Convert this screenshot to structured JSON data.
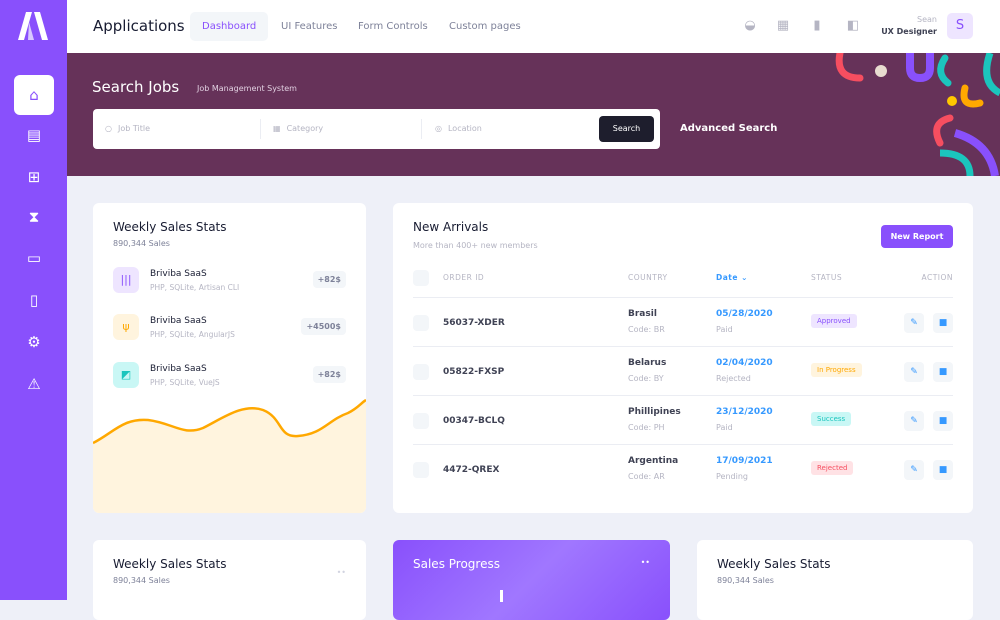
{
  "header": {
    "title": "Applications",
    "nav": [
      "Dashboard",
      "UI Features",
      "Form Controls",
      "Custom pages"
    ],
    "active_nav": "Dashboard",
    "user": {
      "name": "Sean",
      "role": "UX Designer",
      "initial": "S"
    }
  },
  "sidebar": {
    "icons": [
      "home-icon",
      "clipboard-icon",
      "calendar-plus-icon",
      "hourglass-icon",
      "presentation-chart-icon",
      "file-chart-icon",
      "gear-icon",
      "warning-icon"
    ]
  },
  "banner": {
    "title": "Search Jobs",
    "subtitle": "Job Management System",
    "job_placeholder": "Job Title",
    "category_placeholder": "Category",
    "location_placeholder": "Location",
    "search_label": "Search",
    "advanced_label": "Advanced Search"
  },
  "weekly": {
    "title": "Weekly Sales Stats",
    "subtitle": "890,344 Sales",
    "items": [
      {
        "name": "Briviba SaaS",
        "desc": "PHP, SQLite, Artisan CLI",
        "value": "+82$"
      },
      {
        "name": "Briviba SaaS",
        "desc": "PHP, SQLite, AngularJS",
        "value": "+4500$"
      },
      {
        "name": "Briviba SaaS",
        "desc": "PHP, SQLite, VueJS",
        "value": "+82$"
      }
    ]
  },
  "arrivals": {
    "title": "New Arrivals",
    "subtitle": "More than 400+ new members",
    "button": "New Report",
    "columns": [
      "ORDER ID",
      "COUNTRY",
      "Date",
      "STATUS",
      "ACTION"
    ],
    "rows": [
      {
        "id": "56037-XDER",
        "country": "Brasil",
        "code": "Code: BR",
        "date": "05/28/2020",
        "pay": "Paid",
        "status": "Approved"
      },
      {
        "id": "05822-FXSP",
        "country": "Belarus",
        "code": "Code: BY",
        "date": "02/04/2020",
        "pay": "Rejected",
        "status": "In Progress"
      },
      {
        "id": "00347-BCLQ",
        "country": "Phillipines",
        "code": "Code: PH",
        "date": "23/12/2020",
        "pay": "Paid",
        "status": "Success"
      },
      {
        "id": "4472-QREX",
        "country": "Argentina",
        "code": "Code: AR",
        "date": "17/09/2021",
        "pay": "Pending",
        "status": "Rejected"
      }
    ]
  },
  "bottom": [
    {
      "title": "Weekly Sales Stats",
      "subtitle": "890,344 Sales"
    },
    {
      "title": "Sales Progress"
    },
    {
      "title": "Weekly Sales Stats",
      "subtitle": "890,344 Sales"
    }
  ],
  "colors": {
    "primary": "#8950fc",
    "banner": "#663259",
    "approved": "#8950fc",
    "in_progress": "#ffa800",
    "success": "#1bc5bd",
    "rejected": "#f64e60",
    "date": "#3699ff"
  }
}
